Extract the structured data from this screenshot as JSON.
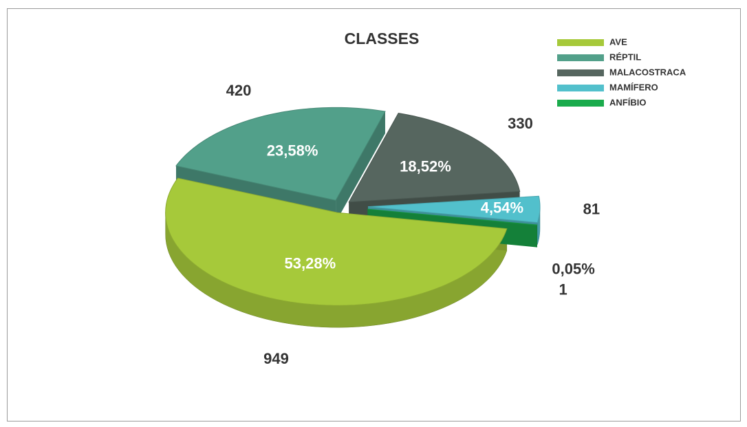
{
  "chart_data": {
    "type": "pie3d",
    "title": "CLASSES",
    "categories": [
      "AVE",
      "RÉPTIL",
      "MALACOSTRACA",
      "MAMÍFERO",
      "ANFÍBIO"
    ],
    "values": [
      949,
      420,
      330,
      81,
      1
    ],
    "percentages": [
      53.28,
      23.58,
      18.52,
      4.54,
      0.05
    ],
    "percentage_labels": [
      "53,28%",
      "23,58%",
      "18,52%",
      "4,54%",
      "0,05%"
    ],
    "colors": [
      "#a6c93a",
      "#52a08a",
      "#56665f",
      "#52c0cc",
      "#1aab4c"
    ],
    "legend": "top-right"
  }
}
